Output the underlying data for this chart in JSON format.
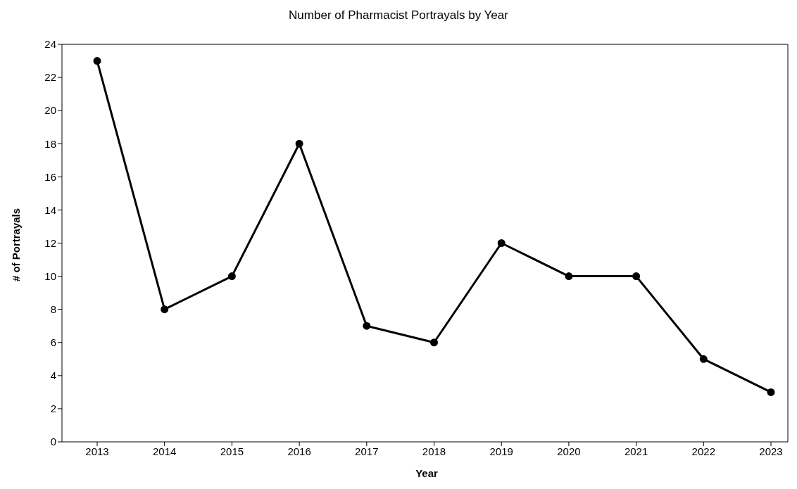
{
  "chart_data": {
    "type": "line",
    "title": "Number of Pharmacist Portrayals by Year",
    "xlabel": "Year",
    "ylabel": "# of Portrayals",
    "categories": [
      "2013",
      "2014",
      "2015",
      "2016",
      "2017",
      "2018",
      "2019",
      "2020",
      "2021",
      "2022",
      "2023"
    ],
    "series": [
      {
        "color": "#000000",
        "values": [
          23,
          8,
          10,
          18,
          7,
          6,
          12,
          10,
          10,
          5,
          3
        ]
      }
    ],
    "ylim": [
      0,
      24
    ],
    "yticks": [
      0,
      2,
      4,
      6,
      8,
      10,
      12,
      14,
      16,
      18,
      20,
      22,
      24
    ],
    "grid": false,
    "legend": false,
    "marker": "circle",
    "line_style": "solid"
  }
}
